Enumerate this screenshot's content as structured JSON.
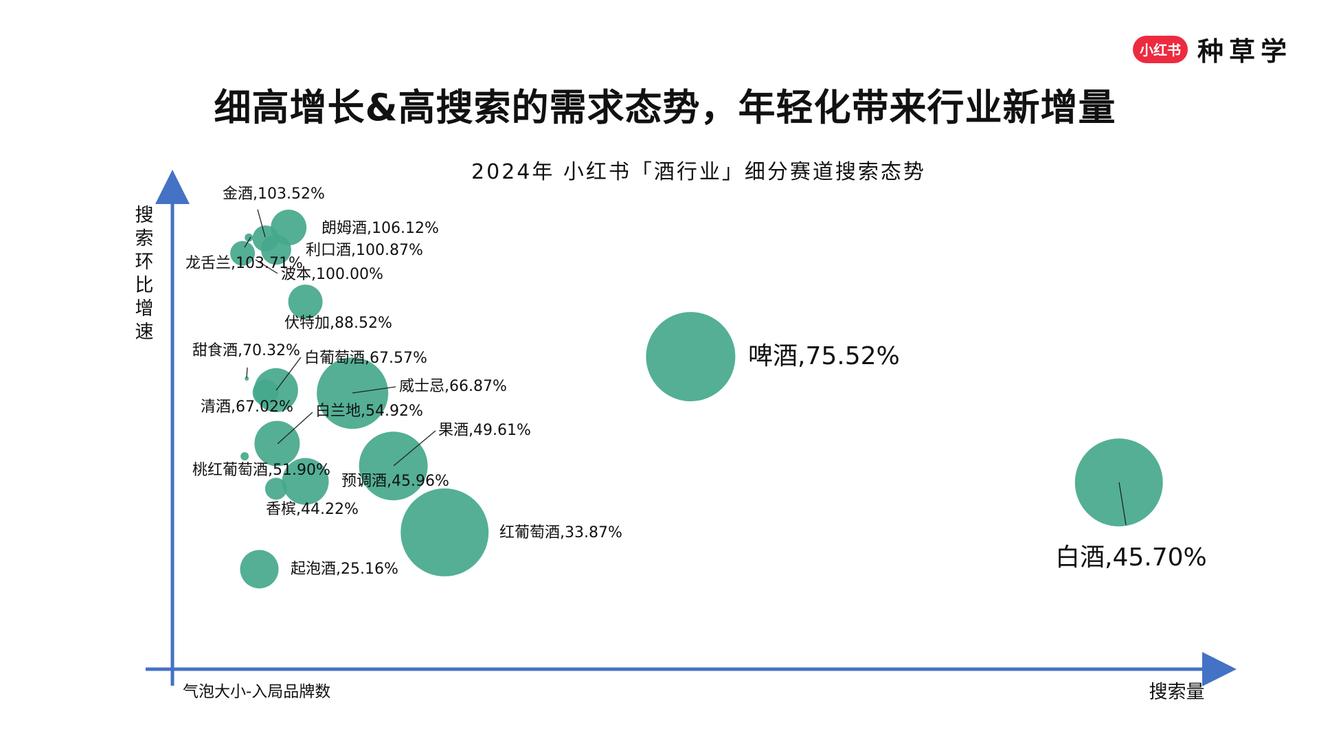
{
  "header": {
    "logo_badge": "小红书",
    "logo_text": "种草学",
    "title": "细高增长&高搜索的需求态势，年轻化带来行业新增量"
  },
  "colors": {
    "bubble": "#45a88c",
    "axis": "#4472c4",
    "logo": "#ee2a3f"
  },
  "chart_data": {
    "type": "scatter",
    "subtype": "bubble",
    "title": "2024年 小红书「酒行业」细分赛道搜索态势",
    "xlabel": "搜索量",
    "ylabel": "搜索环比增速",
    "size_label": "气泡大小-入局品牌数",
    "xlim": [
      0,
      100
    ],
    "ylim": [
      0,
      125
    ],
    "grid": false,
    "points": [
      {
        "name": "朗姆酒",
        "label": "朗姆酒,106.12%",
        "growth": 106.12,
        "search_index": 11.1,
        "size": 26
      },
      {
        "name": "金酒",
        "label": "金酒,103.52%",
        "growth": 103.52,
        "search_index": 8.9,
        "size": 19
      },
      {
        "name": "利口酒",
        "label": "利口酒,100.87%",
        "growth": 100.87,
        "search_index": 9.9,
        "size": 22
      },
      {
        "name": "龙舌兰",
        "label": "龙舌兰,103.71%",
        "growth": 103.71,
        "search_index": 7.3,
        "size": 6
      },
      {
        "name": "波本",
        "label": "波本,100.00%",
        "growth": 100.0,
        "search_index": 6.7,
        "size": 18
      },
      {
        "name": "伏特加",
        "label": "伏特加,88.52%",
        "growth": 88.52,
        "search_index": 12.7,
        "size": 25
      },
      {
        "name": "甜食酒",
        "label": "甜食酒,70.32%",
        "growth": 70.32,
        "search_index": 7.1,
        "size": 3
      },
      {
        "name": "白葡萄酒",
        "label": "白葡萄酒,67.57%",
        "growth": 67.57,
        "search_index": 9.9,
        "size": 32
      },
      {
        "name": "清酒",
        "label": "清酒,67.02%",
        "growth": 67.02,
        "search_index": 8.9,
        "size": 19
      },
      {
        "name": "威士忌",
        "label": "威士忌,66.87%",
        "growth": 66.87,
        "search_index": 17.2,
        "size": 52
      },
      {
        "name": "白兰地",
        "label": "白兰地,54.92%",
        "growth": 54.92,
        "search_index": 10.0,
        "size": 33
      },
      {
        "name": "桃红葡萄酒",
        "label": "桃红葡萄酒,51.90%",
        "growth": 51.9,
        "search_index": 6.9,
        "size": 6
      },
      {
        "name": "果酒",
        "label": "果酒,49.61%",
        "growth": 49.61,
        "search_index": 21.1,
        "size": 50
      },
      {
        "name": "预调酒",
        "label": "预调酒,45.96%",
        "growth": 45.96,
        "search_index": 12.7,
        "size": 34
      },
      {
        "name": "香槟",
        "label": "香槟,44.22%",
        "growth": 44.22,
        "search_index": 9.9,
        "size": 16
      },
      {
        "name": "红葡萄酒",
        "label": "红葡萄酒,33.87%",
        "growth": 33.87,
        "search_index": 26.0,
        "size": 64
      },
      {
        "name": "起泡酒",
        "label": "起泡酒,25.16%",
        "growth": 25.16,
        "search_index": 8.3,
        "size": 28
      },
      {
        "name": "啤酒",
        "label": "啤酒,75.52%",
        "growth": 75.52,
        "search_index": 49.5,
        "size": 65
      },
      {
        "name": "白酒",
        "label": "白酒,45.70%",
        "growth": 45.7,
        "search_index": 90.4,
        "size": 64
      }
    ]
  }
}
